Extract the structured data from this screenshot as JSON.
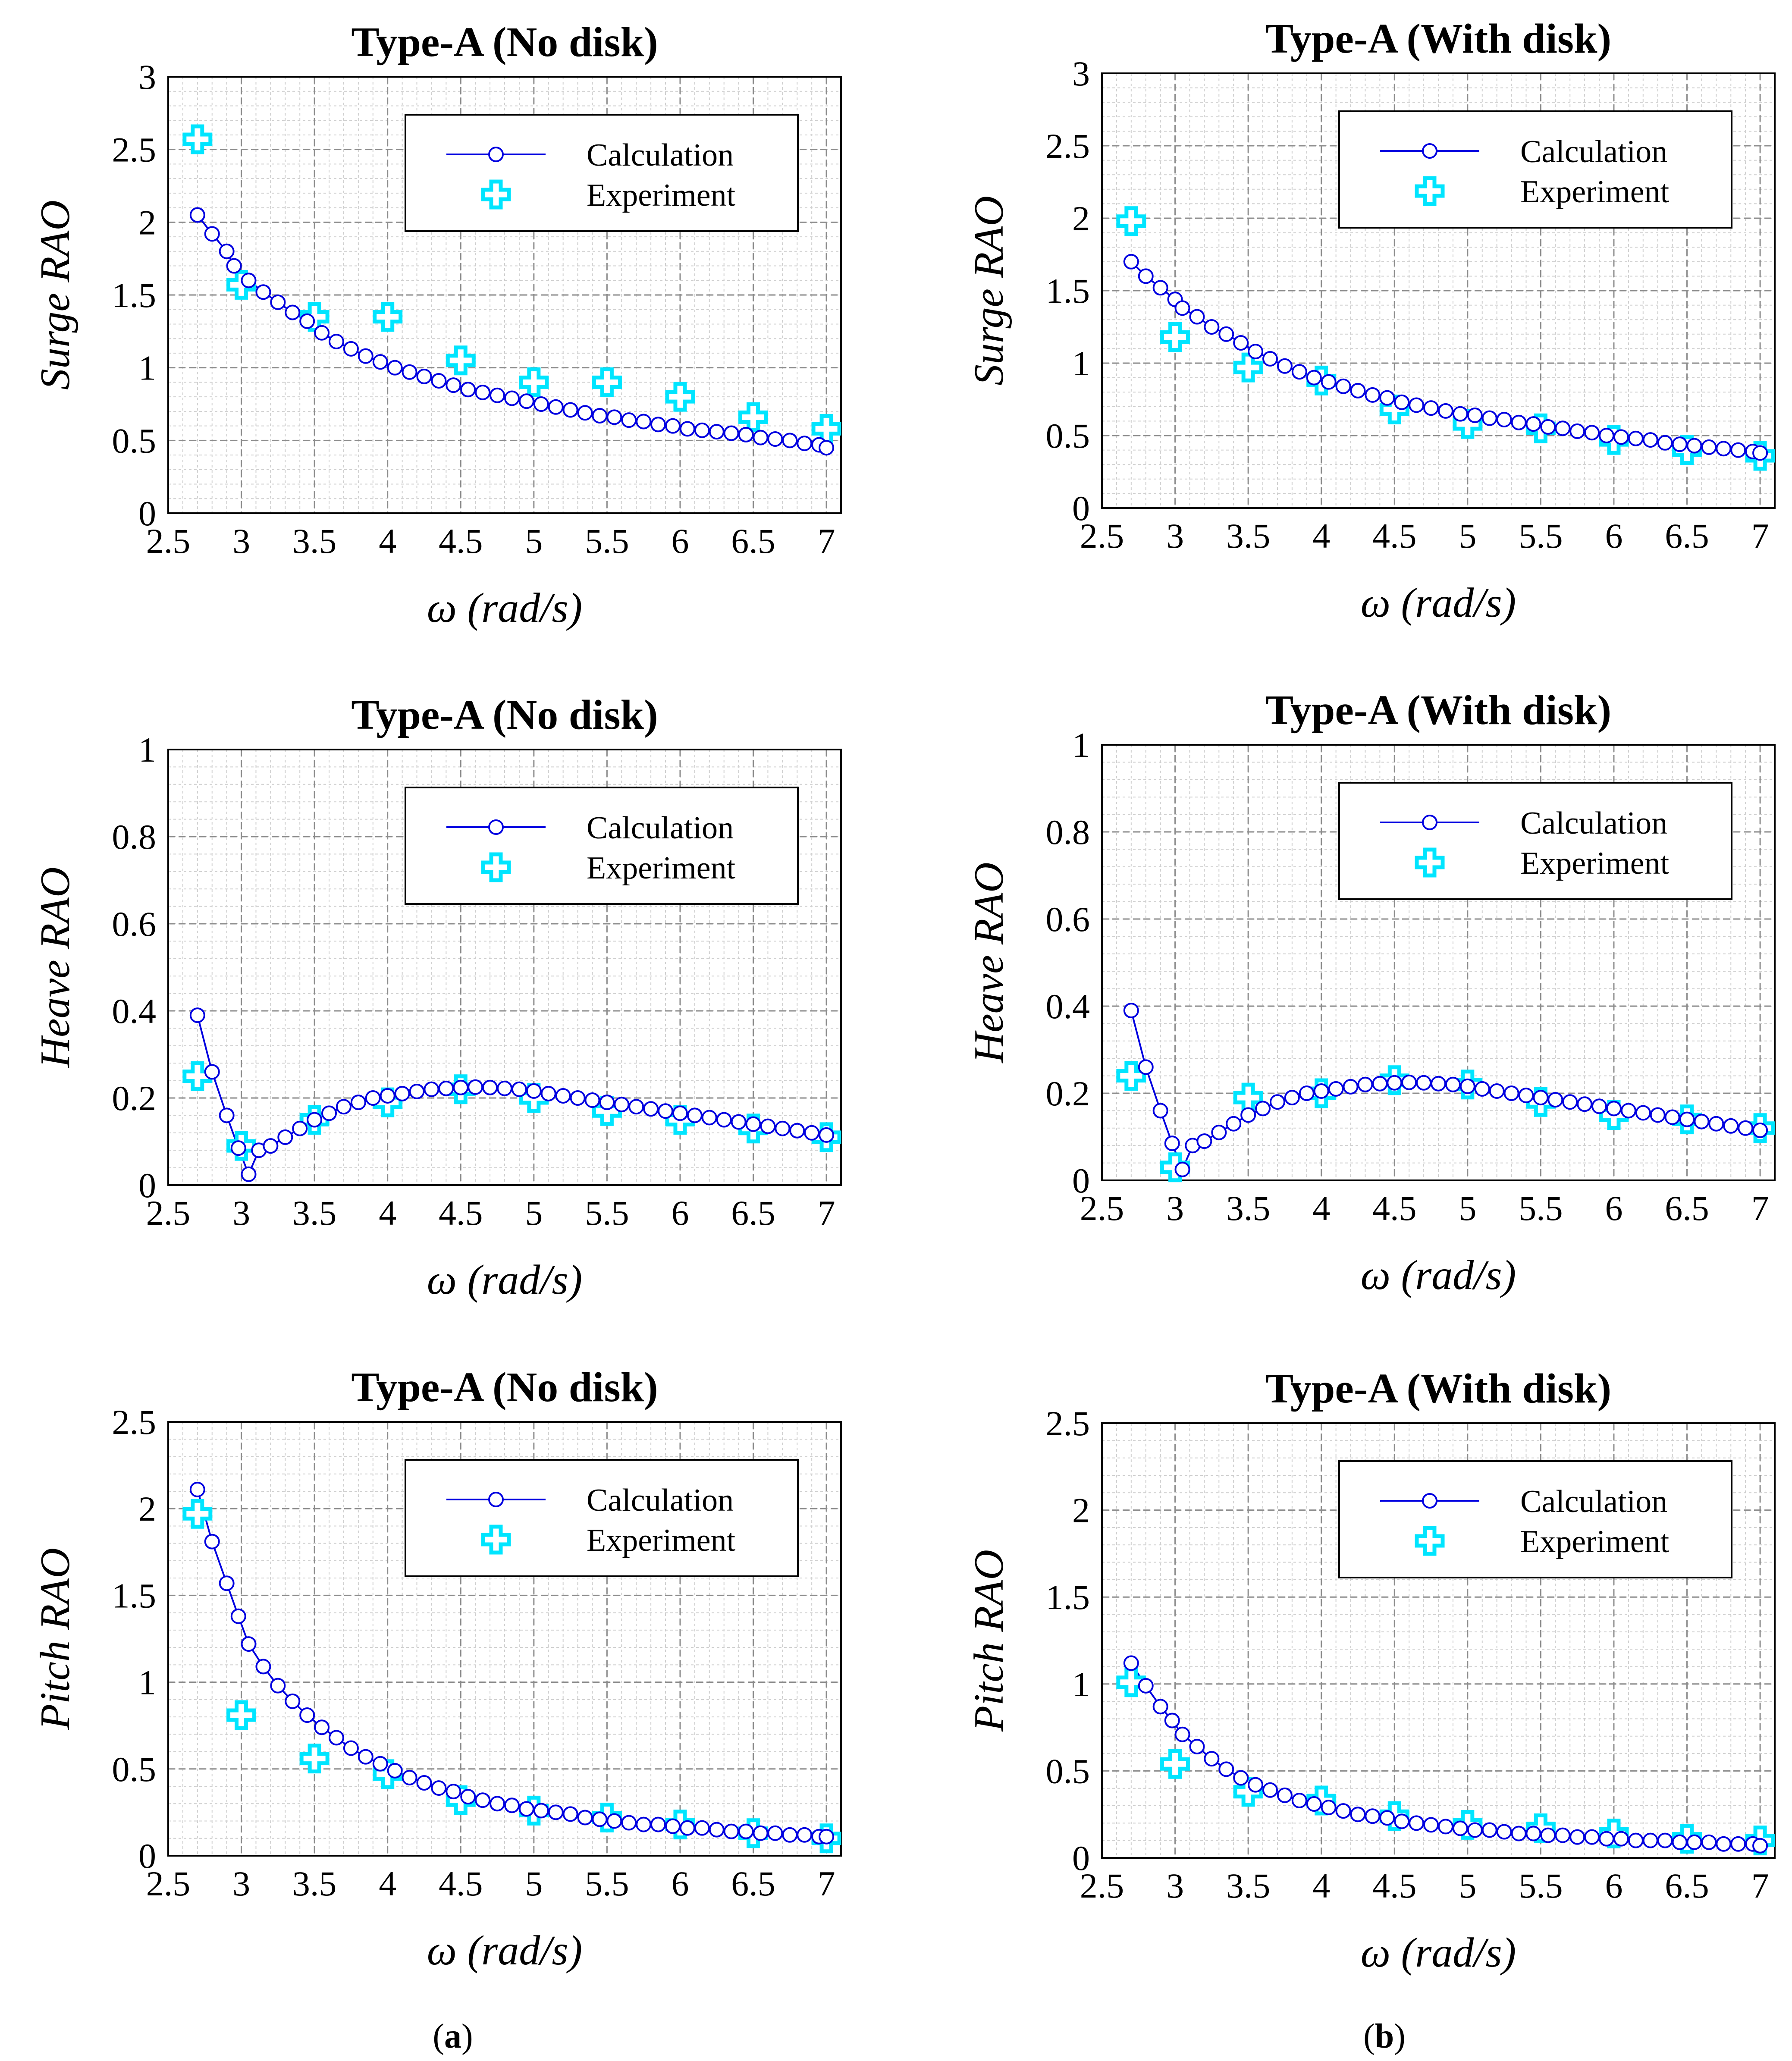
{
  "figure": {
    "sublabel_a": "a",
    "sublabel_b": "b"
  },
  "colors": {
    "calculation": "#0000e0",
    "experiment": "#00e5ff"
  },
  "chart_data": [
    {
      "id": "surge-nodisk",
      "type": "line",
      "title": "Type-A (No disk)",
      "xlabel": "ω (rad/s)",
      "ylabel": "Surge RAO",
      "xlim": [
        2.5,
        7.1
      ],
      "ylim": [
        0,
        3
      ],
      "xticks": [
        2.5,
        3,
        3.5,
        4,
        4.5,
        5,
        5.5,
        6,
        6.5,
        7
      ],
      "xtick_labels": [
        "2.5",
        "3",
        "3.5",
        "4",
        "4.5",
        "5",
        "5.5",
        "6",
        "6.5",
        "7"
      ],
      "yticks": [
        0,
        0.5,
        1,
        1.5,
        2,
        2.5,
        3
      ],
      "ytick_labels": [
        "0",
        "0.5",
        "1",
        "1.5",
        "2",
        "2.5",
        "3"
      ],
      "legend": {
        "position": "top-right",
        "entries": [
          "Calculation",
          "Experiment"
        ]
      },
      "series": [
        {
          "name": "Calculation",
          "x": [
            2.7,
            2.8,
            2.9,
            2.95,
            3.05,
            3.15,
            3.25,
            3.35,
            3.45,
            3.55,
            3.65,
            3.75,
            3.85,
            3.95,
            4.05,
            4.15,
            4.25,
            4.35,
            4.45,
            4.55,
            4.65,
            4.75,
            4.85,
            4.95,
            5.05,
            5.15,
            5.25,
            5.35,
            5.45,
            5.55,
            5.65,
            5.75,
            5.85,
            5.95,
            6.05,
            6.15,
            6.25,
            6.35,
            6.45,
            6.55,
            6.65,
            6.75,
            6.85,
            6.95,
            7.0
          ],
          "values": [
            2.05,
            1.92,
            1.8,
            1.7,
            1.6,
            1.52,
            1.45,
            1.38,
            1.32,
            1.24,
            1.18,
            1.13,
            1.08,
            1.04,
            1.0,
            0.97,
            0.94,
            0.91,
            0.88,
            0.85,
            0.83,
            0.81,
            0.79,
            0.77,
            0.75,
            0.73,
            0.71,
            0.69,
            0.67,
            0.66,
            0.64,
            0.63,
            0.61,
            0.6,
            0.58,
            0.57,
            0.56,
            0.55,
            0.54,
            0.52,
            0.51,
            0.5,
            0.48,
            0.47,
            0.45
          ]
        },
        {
          "name": "Experiment",
          "x": [
            2.7,
            3.0,
            3.5,
            4.0,
            4.5,
            5.0,
            5.5,
            6.0,
            6.5,
            7.0
          ],
          "values": [
            2.57,
            1.57,
            1.35,
            1.35,
            1.05,
            0.9,
            0.9,
            0.8,
            0.66,
            0.58
          ]
        }
      ]
    },
    {
      "id": "surge-withdisk",
      "type": "line",
      "title": "Type-A (With disk)",
      "xlabel": "ω (rad/s)",
      "ylabel": "Surge RAO",
      "xlim": [
        2.5,
        7.1
      ],
      "ylim": [
        0,
        3
      ],
      "xticks": [
        2.5,
        3,
        3.5,
        4,
        4.5,
        5,
        5.5,
        6,
        6.5,
        7
      ],
      "xtick_labels": [
        "2.5",
        "3",
        "3.5",
        "4",
        "4.5",
        "5",
        "5.5",
        "6",
        "6.5",
        "7"
      ],
      "yticks": [
        0,
        0.5,
        1,
        1.5,
        2,
        2.5,
        3
      ],
      "ytick_labels": [
        "0",
        "0.5",
        "1",
        "1.5",
        "2",
        "2.5",
        "3"
      ],
      "legend": {
        "position": "top-right",
        "entries": [
          "Calculation",
          "Experiment"
        ]
      },
      "series": [
        {
          "name": "Calculation",
          "x": [
            2.7,
            2.8,
            2.9,
            3.0,
            3.05,
            3.15,
            3.25,
            3.35,
            3.45,
            3.55,
            3.65,
            3.75,
            3.85,
            3.95,
            4.05,
            4.15,
            4.25,
            4.35,
            4.45,
            4.55,
            4.65,
            4.75,
            4.85,
            4.95,
            5.05,
            5.15,
            5.25,
            5.35,
            5.45,
            5.55,
            5.65,
            5.75,
            5.85,
            5.95,
            6.05,
            6.15,
            6.25,
            6.35,
            6.45,
            6.55,
            6.65,
            6.75,
            6.85,
            6.95,
            7.0
          ],
          "values": [
            1.7,
            1.6,
            1.52,
            1.44,
            1.38,
            1.32,
            1.25,
            1.2,
            1.14,
            1.08,
            1.03,
            0.98,
            0.94,
            0.9,
            0.87,
            0.84,
            0.81,
            0.78,
            0.76,
            0.73,
            0.71,
            0.69,
            0.67,
            0.65,
            0.64,
            0.62,
            0.61,
            0.59,
            0.58,
            0.56,
            0.55,
            0.53,
            0.52,
            0.5,
            0.49,
            0.48,
            0.47,
            0.45,
            0.44,
            0.43,
            0.42,
            0.41,
            0.4,
            0.39,
            0.38
          ]
        },
        {
          "name": "Experiment",
          "x": [
            2.7,
            3.0,
            3.5,
            4.0,
            4.5,
            5.0,
            5.5,
            6.0,
            6.5,
            7.0
          ],
          "values": [
            1.98,
            1.18,
            0.97,
            0.88,
            0.68,
            0.58,
            0.55,
            0.47,
            0.4,
            0.36
          ]
        }
      ]
    },
    {
      "id": "heave-nodisk",
      "type": "line",
      "title": "Type-A (No disk)",
      "xlabel": "ω (rad/s)",
      "ylabel": "Heave RAO",
      "xlim": [
        2.5,
        7.1
      ],
      "ylim": [
        0,
        1
      ],
      "xticks": [
        2.5,
        3,
        3.5,
        4,
        4.5,
        5,
        5.5,
        6,
        6.5,
        7
      ],
      "xtick_labels": [
        "2.5",
        "3",
        "3.5",
        "4",
        "4.5",
        "5",
        "5.5",
        "6",
        "6.5",
        "7"
      ],
      "yticks": [
        0,
        0.2,
        0.4,
        0.6,
        0.8,
        1
      ],
      "ytick_labels": [
        "0",
        "0.2",
        "0.4",
        "0.6",
        "0.8",
        "1"
      ],
      "legend": {
        "position": "top-right",
        "entries": [
          "Calculation",
          "Experiment"
        ]
      },
      "series": [
        {
          "name": "Calculation",
          "x": [
            2.7,
            2.8,
            2.9,
            2.98,
            3.05,
            3.12,
            3.2,
            3.3,
            3.4,
            3.5,
            3.6,
            3.7,
            3.8,
            3.9,
            4.0,
            4.1,
            4.2,
            4.3,
            4.4,
            4.5,
            4.6,
            4.7,
            4.8,
            4.9,
            5.0,
            5.1,
            5.2,
            5.3,
            5.4,
            5.5,
            5.6,
            5.7,
            5.8,
            5.9,
            6.0,
            6.1,
            6.2,
            6.3,
            6.4,
            6.5,
            6.6,
            6.7,
            6.8,
            6.9,
            7.0
          ],
          "values": [
            0.39,
            0.26,
            0.16,
            0.085,
            0.025,
            0.08,
            0.09,
            0.11,
            0.13,
            0.15,
            0.165,
            0.18,
            0.19,
            0.2,
            0.205,
            0.21,
            0.215,
            0.22,
            0.222,
            0.224,
            0.225,
            0.224,
            0.222,
            0.22,
            0.216,
            0.21,
            0.205,
            0.2,
            0.195,
            0.19,
            0.185,
            0.18,
            0.175,
            0.17,
            0.165,
            0.16,
            0.155,
            0.15,
            0.145,
            0.14,
            0.135,
            0.13,
            0.125,
            0.12,
            0.115
          ]
        },
        {
          "name": "Experiment",
          "x": [
            2.7,
            3.0,
            3.5,
            4.0,
            4.5,
            5.0,
            5.5,
            6.0,
            6.5,
            7.0
          ],
          "values": [
            0.25,
            0.09,
            0.15,
            0.19,
            0.22,
            0.2,
            0.17,
            0.15,
            0.13,
            0.11
          ]
        }
      ]
    },
    {
      "id": "heave-withdisk",
      "type": "line",
      "title": "Type-A (With disk)",
      "xlabel": "ω (rad/s)",
      "ylabel": "Heave RAO",
      "xlim": [
        2.5,
        7.1
      ],
      "ylim": [
        0,
        1
      ],
      "xticks": [
        2.5,
        3,
        3.5,
        4,
        4.5,
        5,
        5.5,
        6,
        6.5,
        7
      ],
      "xtick_labels": [
        "2.5",
        "3",
        "3.5",
        "4",
        "4.5",
        "5",
        "5.5",
        "6",
        "6.5",
        "7"
      ],
      "yticks": [
        0,
        0.2,
        0.4,
        0.6,
        0.8,
        1
      ],
      "ytick_labels": [
        "0",
        "0.2",
        "0.4",
        "0.6",
        "0.8",
        "1"
      ],
      "legend": {
        "position": "top-right",
        "entries": [
          "Calculation",
          "Experiment"
        ]
      },
      "series": [
        {
          "name": "Calculation",
          "x": [
            2.7,
            2.8,
            2.9,
            2.98,
            3.05,
            3.12,
            3.2,
            3.3,
            3.4,
            3.5,
            3.6,
            3.7,
            3.8,
            3.9,
            4.0,
            4.1,
            4.2,
            4.3,
            4.4,
            4.5,
            4.6,
            4.7,
            4.8,
            4.9,
            5.0,
            5.1,
            5.2,
            5.3,
            5.4,
            5.5,
            5.6,
            5.7,
            5.8,
            5.9,
            6.0,
            6.1,
            6.2,
            6.3,
            6.4,
            6.5,
            6.6,
            6.7,
            6.8,
            6.9,
            7.0
          ],
          "values": [
            0.39,
            0.26,
            0.16,
            0.085,
            0.025,
            0.08,
            0.09,
            0.11,
            0.13,
            0.15,
            0.165,
            0.18,
            0.19,
            0.2,
            0.205,
            0.21,
            0.215,
            0.22,
            0.222,
            0.224,
            0.225,
            0.224,
            0.222,
            0.22,
            0.216,
            0.21,
            0.205,
            0.2,
            0.195,
            0.19,
            0.185,
            0.18,
            0.175,
            0.17,
            0.165,
            0.16,
            0.155,
            0.15,
            0.145,
            0.14,
            0.135,
            0.13,
            0.125,
            0.12,
            0.115
          ]
        },
        {
          "name": "Experiment",
          "x": [
            2.7,
            3.0,
            3.5,
            4.0,
            4.5,
            5.0,
            5.5,
            6.0,
            6.5,
            7.0
          ],
          "values": [
            0.24,
            0.03,
            0.19,
            0.2,
            0.23,
            0.22,
            0.18,
            0.15,
            0.14,
            0.12
          ]
        }
      ]
    },
    {
      "id": "pitch-nodisk",
      "type": "line",
      "title": "Type-A (No disk)",
      "xlabel": "ω (rad/s)",
      "ylabel": "Pitch RAO",
      "xlim": [
        2.5,
        7.1
      ],
      "ylim": [
        0,
        2.5
      ],
      "xticks": [
        2.5,
        3,
        3.5,
        4,
        4.5,
        5,
        5.5,
        6,
        6.5,
        7
      ],
      "xtick_labels": [
        "2.5",
        "3",
        "3.5",
        "4",
        "4.5",
        "5",
        "5.5",
        "6",
        "6.5",
        "7"
      ],
      "yticks": [
        0,
        0.5,
        1,
        1.5,
        2,
        2.5
      ],
      "ytick_labels": [
        "0",
        "0.5",
        "1",
        "1.5",
        "2",
        "2.5"
      ],
      "legend": {
        "position": "top-right",
        "entries": [
          "Calculation",
          "Experiment"
        ]
      },
      "series": [
        {
          "name": "Calculation",
          "x": [
            2.7,
            2.8,
            2.9,
            2.98,
            3.05,
            3.15,
            3.25,
            3.35,
            3.45,
            3.55,
            3.65,
            3.75,
            3.85,
            3.95,
            4.05,
            4.15,
            4.25,
            4.35,
            4.45,
            4.55,
            4.65,
            4.75,
            4.85,
            4.95,
            5.05,
            5.15,
            5.25,
            5.35,
            5.45,
            5.55,
            5.65,
            5.75,
            5.85,
            5.95,
            6.05,
            6.15,
            6.25,
            6.35,
            6.45,
            6.55,
            6.65,
            6.75,
            6.85,
            6.95,
            7.0
          ],
          "values": [
            2.11,
            1.81,
            1.57,
            1.38,
            1.22,
            1.09,
            0.98,
            0.89,
            0.81,
            0.74,
            0.68,
            0.62,
            0.57,
            0.53,
            0.49,
            0.45,
            0.42,
            0.39,
            0.37,
            0.34,
            0.32,
            0.3,
            0.29,
            0.27,
            0.26,
            0.25,
            0.24,
            0.22,
            0.21,
            0.2,
            0.19,
            0.18,
            0.18,
            0.17,
            0.16,
            0.16,
            0.15,
            0.14,
            0.14,
            0.13,
            0.13,
            0.12,
            0.12,
            0.11,
            0.11
          ]
        },
        {
          "name": "Experiment",
          "x": [
            2.7,
            3.0,
            3.5,
            4.0,
            4.5,
            5.0,
            5.5,
            6.0,
            6.5,
            7.0
          ],
          "values": [
            1.97,
            0.81,
            0.56,
            0.47,
            0.32,
            0.26,
            0.22,
            0.18,
            0.13,
            0.1
          ]
        }
      ]
    },
    {
      "id": "pitch-withdisk",
      "type": "line",
      "title": "Type-A (With disk)",
      "xlabel": "ω (rad/s)",
      "ylabel": "Pitch RAO",
      "xlim": [
        2.5,
        7.1
      ],
      "ylim": [
        0,
        2.5
      ],
      "xticks": [
        2.5,
        3,
        3.5,
        4,
        4.5,
        5,
        5.5,
        6,
        6.5,
        7
      ],
      "xtick_labels": [
        "2.5",
        "3",
        "3.5",
        "4",
        "4.5",
        "5",
        "5.5",
        "6",
        "6.5",
        "7"
      ],
      "yticks": [
        0,
        0.5,
        1,
        1.5,
        2,
        2.5
      ],
      "ytick_labels": [
        "0",
        "0.5",
        "1",
        "1.5",
        "2",
        "2.5"
      ],
      "legend": {
        "position": "top-right",
        "entries": [
          "Calculation",
          "Experiment"
        ]
      },
      "series": [
        {
          "name": "Calculation",
          "x": [
            2.7,
            2.8,
            2.9,
            2.98,
            3.05,
            3.15,
            3.25,
            3.35,
            3.45,
            3.55,
            3.65,
            3.75,
            3.85,
            3.95,
            4.05,
            4.15,
            4.25,
            4.35,
            4.45,
            4.55,
            4.65,
            4.75,
            4.85,
            4.95,
            5.05,
            5.15,
            5.25,
            5.35,
            5.45,
            5.55,
            5.65,
            5.75,
            5.85,
            5.95,
            6.05,
            6.15,
            6.25,
            6.35,
            6.45,
            6.55,
            6.65,
            6.75,
            6.85,
            6.95,
            7.0
          ],
          "values": [
            1.12,
            0.99,
            0.87,
            0.79,
            0.71,
            0.64,
            0.57,
            0.51,
            0.46,
            0.42,
            0.39,
            0.36,
            0.33,
            0.31,
            0.29,
            0.27,
            0.25,
            0.24,
            0.23,
            0.21,
            0.2,
            0.19,
            0.18,
            0.17,
            0.16,
            0.16,
            0.15,
            0.14,
            0.14,
            0.13,
            0.13,
            0.12,
            0.12,
            0.11,
            0.11,
            0.1,
            0.1,
            0.1,
            0.09,
            0.09,
            0.09,
            0.08,
            0.08,
            0.08,
            0.07
          ]
        },
        {
          "name": "Experiment",
          "x": [
            2.7,
            3.0,
            3.5,
            4.0,
            4.5,
            5.0,
            5.5,
            6.0,
            6.5,
            7.0
          ],
          "values": [
            1.01,
            0.54,
            0.38,
            0.33,
            0.24,
            0.19,
            0.17,
            0.14,
            0.11,
            0.1
          ]
        }
      ]
    }
  ]
}
